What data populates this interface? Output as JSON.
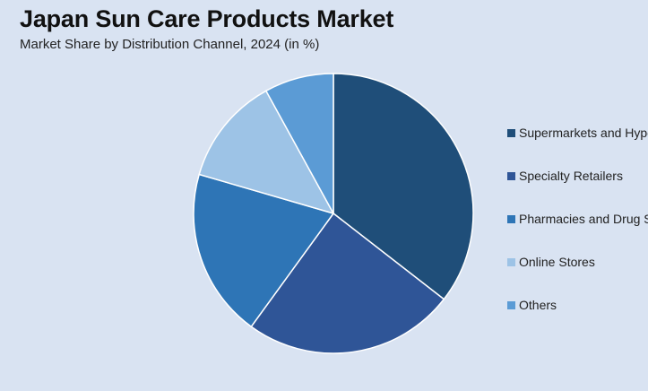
{
  "header": {
    "title": "Japan Sun Care Products Market",
    "subtitle": "Market Share by Distribution Channel, 2024 (in %)"
  },
  "chart_data": {
    "type": "pie",
    "title": "Japan Sun Care Products Market",
    "subtitle": "Market Share by Distribution Channel, 2024 (in %)",
    "categories": [
      "Supermarkets and Hypermarkets",
      "Specialty Retailers",
      "Pharmacies and Drug Stores",
      "Online Stores",
      "Others"
    ],
    "values": [
      35.5,
      24.5,
      19.5,
      12.5,
      8.0
    ],
    "colors": [
      "#1f4e79",
      "#2f5597",
      "#2e75b6",
      "#9dc3e6",
      "#5b9bd5"
    ],
    "legend": "right"
  }
}
